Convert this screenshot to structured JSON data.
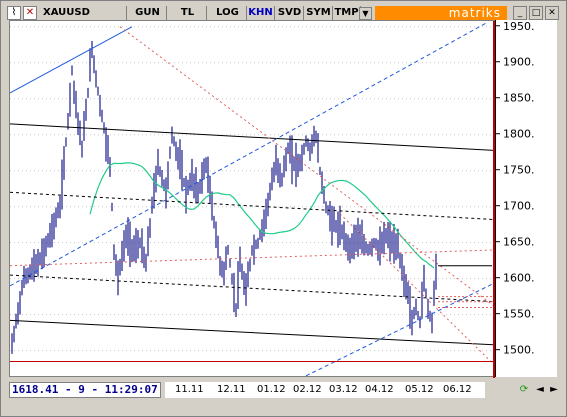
{
  "toolbar": {
    "symbol": "XAUUSD",
    "buttons": [
      {
        "label": "GUN",
        "active": false
      },
      {
        "label": "TL",
        "active": false
      },
      {
        "label": "LOG",
        "active": false
      },
      {
        "label": "KHN",
        "active": true
      },
      {
        "label": "SVD",
        "active": false
      },
      {
        "label": "SYM",
        "active": false
      },
      {
        "label": "TMP",
        "active": false
      }
    ],
    "brand": "matriks"
  },
  "readout": "1618.41 - 9 - 11:29:07",
  "chart_data": {
    "type": "candlestick-bars",
    "ylim": [
      1462,
      1958
    ],
    "yticks": [
      "1950.",
      "1900.",
      "1850.",
      "1800.",
      "1750.",
      "1700.",
      "1650.",
      "1600.",
      "1550.",
      "1500."
    ],
    "x_tick_labels": [
      "11.11",
      "12.11",
      "01.12",
      "02.12",
      "03.12",
      "04.12",
      "05.12",
      "06.12"
    ],
    "horizontal_levels": [
      {
        "value": 1485,
        "color": "#c00000"
      },
      {
        "value": 1618,
        "color": "#000000"
      }
    ],
    "last_price": 1618.41,
    "ma_color": "#22cc88",
    "colors": {
      "bars": "#1a1a8c",
      "channel": "#000000",
      "trend_up": "#1e5adc",
      "trend_down": "#e06060"
    }
  },
  "icons": {
    "refresh": "refresh-icon",
    "nav_left": "arrow-left-icon",
    "nav_right": "arrow-right-icon"
  }
}
